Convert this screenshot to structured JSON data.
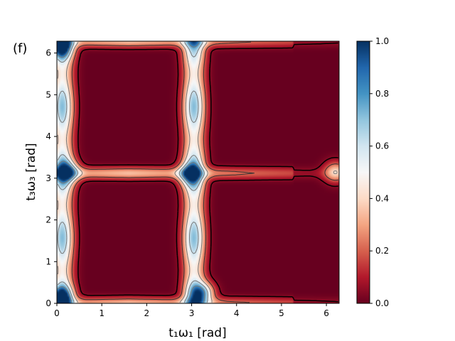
{
  "panel_label": "(f)",
  "chart_data": {
    "type": "heatmap",
    "title": "",
    "xlabel": "t₁ω₁ [rad]",
    "ylabel": "t₃ω₃ [rad]",
    "xlim": [
      0,
      6.2832
    ],
    "ylim": [
      0,
      6.2832
    ],
    "xticks": [
      0,
      1,
      2,
      3,
      4,
      5,
      6
    ],
    "yticks": [
      0,
      1,
      2,
      3,
      4,
      5,
      6
    ],
    "colormap": "RdBu",
    "colorbar": {
      "min": 0.0,
      "max": 1.0,
      "ticks": [
        "0.0",
        "0.2",
        "0.4",
        "0.6",
        "0.8",
        "1.0"
      ]
    },
    "contour_levels": [
      0.05,
      0.2,
      0.4,
      0.6,
      0.8
    ],
    "regions": [
      {
        "name": "low plateau",
        "x": [
          0.55,
          2.65
        ],
        "y": [
          0.3,
          2.75
        ],
        "value": 0.0
      },
      {
        "name": "low plateau",
        "x": [
          3.35,
          6.2
        ],
        "y": [
          0.3,
          3.05
        ],
        "value": 0.0
      },
      {
        "name": "low plateau",
        "x": [
          0.55,
          2.65
        ],
        "y": [
          3.5,
          5.95
        ],
        "value": 0.0
      },
      {
        "name": "low plateau",
        "x": [
          3.35,
          6.2
        ],
        "y": [
          3.35,
          6.1
        ],
        "value": 0.0
      }
    ],
    "peaks": [
      {
        "x": 0.25,
        "y": 3.15,
        "value": 0.9
      },
      {
        "x": 2.95,
        "y": 3.1,
        "value": 0.85
      },
      {
        "x": 0.1,
        "y": 0.15,
        "value": 1.0
      },
      {
        "x": 0.1,
        "y": 6.15,
        "value": 1.0
      },
      {
        "x": 3.25,
        "y": 0.25,
        "value": 0.95
      },
      {
        "x": 6.2,
        "y": 3.15,
        "value": 0.6
      }
    ],
    "grid": false
  }
}
